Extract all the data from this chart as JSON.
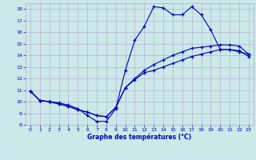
{
  "title": "Graphe des températures (°C)",
  "bg_color": "#cce8e8",
  "grid_color": "#aaaacc",
  "line_color": "#0000bb",
  "marker": "+",
  "markersize": 3,
  "linewidth": 0.8,
  "markeredgewidth": 0.9,
  "xlim": [
    -0.5,
    23.5
  ],
  "ylim": [
    8,
    18.5
  ],
  "xticks": [
    0,
    1,
    2,
    3,
    4,
    5,
    6,
    7,
    8,
    9,
    10,
    11,
    12,
    13,
    14,
    15,
    16,
    17,
    18,
    19,
    20,
    21,
    22,
    23
  ],
  "yticks": [
    8,
    9,
    10,
    11,
    12,
    13,
    14,
    15,
    16,
    17,
    18
  ],
  "line1_y": [
    10.9,
    10.1,
    10.0,
    9.9,
    9.7,
    9.4,
    8.8,
    8.3,
    8.3,
    9.4,
    12.7,
    15.3,
    16.5,
    18.2,
    18.1,
    17.5,
    17.5,
    18.2,
    17.5,
    16.2,
    14.5,
    14.5,
    14.3,
    14.1
  ],
  "line2_y": [
    10.9,
    10.1,
    10.0,
    9.8,
    9.6,
    9.3,
    9.1,
    8.8,
    8.7,
    9.5,
    11.2,
    11.9,
    12.5,
    12.7,
    13.0,
    13.3,
    13.6,
    13.9,
    14.1,
    14.3,
    14.5,
    14.5,
    14.4,
    13.9
  ],
  "line3_y": [
    10.9,
    10.1,
    10.0,
    9.8,
    9.6,
    9.3,
    9.1,
    8.8,
    8.7,
    9.5,
    11.2,
    12.0,
    12.7,
    13.2,
    13.6,
    14.0,
    14.3,
    14.6,
    14.7,
    14.8,
    14.9,
    14.9,
    14.8,
    14.1
  ]
}
